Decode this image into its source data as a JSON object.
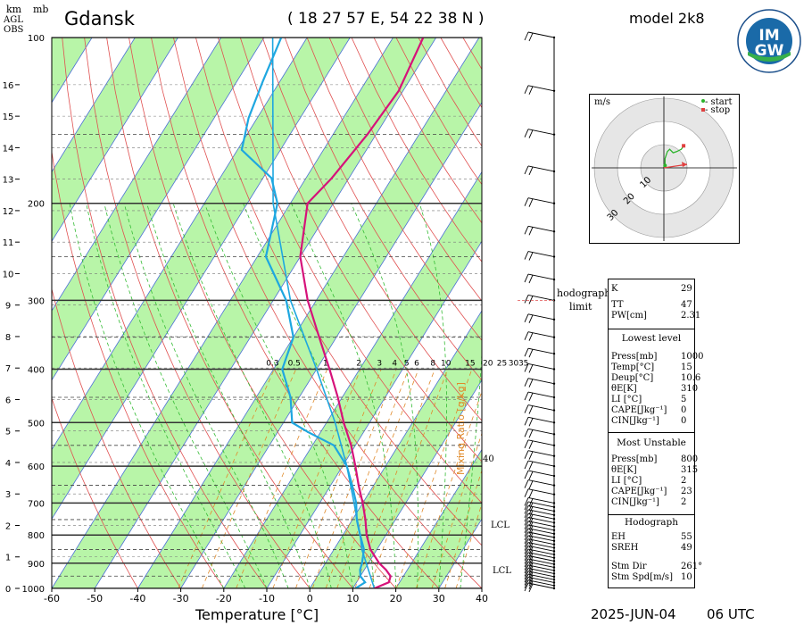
{
  "header": {
    "station": "Gdansk",
    "coords": "( 18 27 57 E, 54 22 38 N )",
    "model": "model 2k8",
    "km_label": "km",
    "agl_label": "AGL",
    "obs_label": "OBS",
    "mb_label": "mb",
    "date": "2025-JUN-04",
    "time": "06 UTC",
    "logo_top": "IM",
    "logo_bottom": "GW"
  },
  "hodograph": {
    "units": "m/s",
    "legend_start": "- start",
    "legend_stop": "- stop",
    "rings": [
      "10",
      "20",
      "30"
    ],
    "limit_label_1": "hodograph",
    "limit_label_2": "limit"
  },
  "wind_profile": {
    "labels": [
      "40",
      "LCL",
      "LCL"
    ]
  },
  "indices": {
    "top": [
      {
        "k": "K",
        "v": "29"
      },
      {
        "k": "TT",
        "v": "47"
      },
      {
        "k": "PW[cm]",
        "v": "2.31"
      }
    ],
    "lowest_title": "Lowest level",
    "lowest": [
      {
        "k": "Press[mb]",
        "v": "1000"
      },
      {
        "k": "Temp[°C]",
        "v": "15"
      },
      {
        "k": "Deup[°C]",
        "v": "10.6"
      },
      {
        "k": "θE[K]",
        "v": "310"
      },
      {
        "k": "LI [°C]",
        "v": "5"
      },
      {
        "k": "CAPE[Jkg⁻¹]",
        "v": "0"
      },
      {
        "k": "CIN[Jkg⁻¹]",
        "v": "0"
      }
    ],
    "unstable_title": "Most Unstable",
    "unstable": [
      {
        "k": "Press[mb]",
        "v": "800"
      },
      {
        "k": "θE[K]",
        "v": "315"
      },
      {
        "k": "LI [°C]",
        "v": "2"
      },
      {
        "k": "CAPE[Jkg⁻¹]",
        "v": "23"
      },
      {
        "k": "CIN[Jkg⁻¹]",
        "v": "2"
      }
    ],
    "hodo_title": "Hodograph",
    "hodo": [
      {
        "k": "EH",
        "v": "55"
      },
      {
        "k": "SREH",
        "v": "49"
      }
    ],
    "storm": [
      {
        "k": "Stm Dir",
        "v": "261°"
      },
      {
        "k": "Stm Spd[m/s]",
        "v": "10"
      }
    ]
  },
  "colors": {
    "temperature": "#d6127a",
    "dewpoint": "#1ea7e0",
    "isotherm_band": "#b8f5a8",
    "dry_adiabat": "#e05050",
    "moist_adiabat": "#33bb33",
    "isotherm_line": "#4a6fd6",
    "mixing_ratio": "#e08a2a"
  },
  "chart_data": {
    "type": "skew-t",
    "xlabel": "Temperature [°C]",
    "mixing_label": "Mixing Ratio [g/kg]",
    "xticks": [
      -60,
      -50,
      -40,
      -30,
      -20,
      -10,
      0,
      10,
      20,
      30,
      40
    ],
    "pressure_ticks": [
      1000,
      900,
      800,
      700,
      600,
      500,
      400,
      300,
      200,
      100
    ],
    "height_ticks_km": [
      0,
      1,
      2,
      3,
      4,
      5,
      6,
      7,
      8,
      9,
      10,
      11,
      12,
      13,
      14,
      15,
      16
    ],
    "mixing_ratio_labels": [
      "0.3",
      "0.5",
      "1",
      "2",
      "3",
      "4",
      "5",
      "6",
      "8",
      "10",
      "15",
      "20",
      "25",
      "30",
      "35"
    ],
    "temperature_profile": [
      {
        "p": 1000,
        "t": 15.0
      },
      {
        "p": 975,
        "t": 17.5
      },
      {
        "p": 950,
        "t": 17.0
      },
      {
        "p": 925,
        "t": 15.0
      },
      {
        "p": 900,
        "t": 12.5
      },
      {
        "p": 850,
        "t": 8.5
      },
      {
        "p": 800,
        "t": 5.5
      },
      {
        "p": 750,
        "t": 3.0
      },
      {
        "p": 700,
        "t": 0.0
      },
      {
        "p": 650,
        "t": -3.5
      },
      {
        "p": 600,
        "t": -7.0
      },
      {
        "p": 550,
        "t": -11.0
      },
      {
        "p": 500,
        "t": -16.0
      },
      {
        "p": 450,
        "t": -21.0
      },
      {
        "p": 400,
        "t": -27.0
      },
      {
        "p": 350,
        "t": -34.0
      },
      {
        "p": 300,
        "t": -42.0
      },
      {
        "p": 250,
        "t": -50.0
      },
      {
        "p": 200,
        "t": -56.0
      },
      {
        "p": 180,
        "t": -54.0
      },
      {
        "p": 150,
        "t": -52.0
      },
      {
        "p": 125,
        "t": -51.0
      },
      {
        "p": 100,
        "t": -53.0
      }
    ],
    "dewpoint_profile": [
      {
        "p": 1000,
        "t": 10.6
      },
      {
        "p": 975,
        "t": 12.0
      },
      {
        "p": 950,
        "t": 10.0
      },
      {
        "p": 925,
        "t": 9.0
      },
      {
        "p": 900,
        "t": 8.5
      },
      {
        "p": 850,
        "t": 7.0
      },
      {
        "p": 800,
        "t": 4.0
      },
      {
        "p": 750,
        "t": 1.0
      },
      {
        "p": 700,
        "t": -1.5
      },
      {
        "p": 650,
        "t": -5.0
      },
      {
        "p": 600,
        "t": -9.0
      },
      {
        "p": 550,
        "t": -15.0
      },
      {
        "p": 520,
        "t": -23.0
      },
      {
        "p": 500,
        "t": -28.0
      },
      {
        "p": 450,
        "t": -32.0
      },
      {
        "p": 400,
        "t": -38.0
      },
      {
        "p": 350,
        "t": -40.0
      },
      {
        "p": 300,
        "t": -47.0
      },
      {
        "p": 250,
        "t": -58.0
      },
      {
        "p": 200,
        "t": -63.0
      },
      {
        "p": 180,
        "t": -68.0
      },
      {
        "p": 160,
        "t": -79.0
      },
      {
        "p": 140,
        "t": -82.0
      },
      {
        "p": 120,
        "t": -84.0
      },
      {
        "p": 100,
        "t": -86.0
      }
    ],
    "parcel_profile": [
      {
        "p": 1000,
        "t": 15.0
      },
      {
        "p": 900,
        "t": 9.5
      },
      {
        "p": 850,
        "t": 6.5
      },
      {
        "p": 800,
        "t": 4.0
      },
      {
        "p": 700,
        "t": -2.0
      },
      {
        "p": 600,
        "t": -9.0
      },
      {
        "p": 500,
        "t": -18.0
      },
      {
        "p": 400,
        "t": -30.0
      },
      {
        "p": 300,
        "t": -46.0
      },
      {
        "p": 200,
        "t": -64.0
      },
      {
        "p": 100,
        "t": -88.0
      }
    ],
    "hodograph_points": [
      {
        "u": 0.5,
        "v": 1.0
      },
      {
        "u": 0.5,
        "v": 4.0
      },
      {
        "u": 1.5,
        "v": 7.0
      },
      {
        "u": 2.5,
        "v": 8.0
      },
      {
        "u": 4.0,
        "v": 6.5
      },
      {
        "u": 5.5,
        "v": 7.0
      },
      {
        "u": 7.5,
        "v": 8.0
      },
      {
        "u": 8.5,
        "v": 9.5
      }
    ],
    "storm_motion": {
      "u": 10.0,
      "v": 1.5
    }
  }
}
